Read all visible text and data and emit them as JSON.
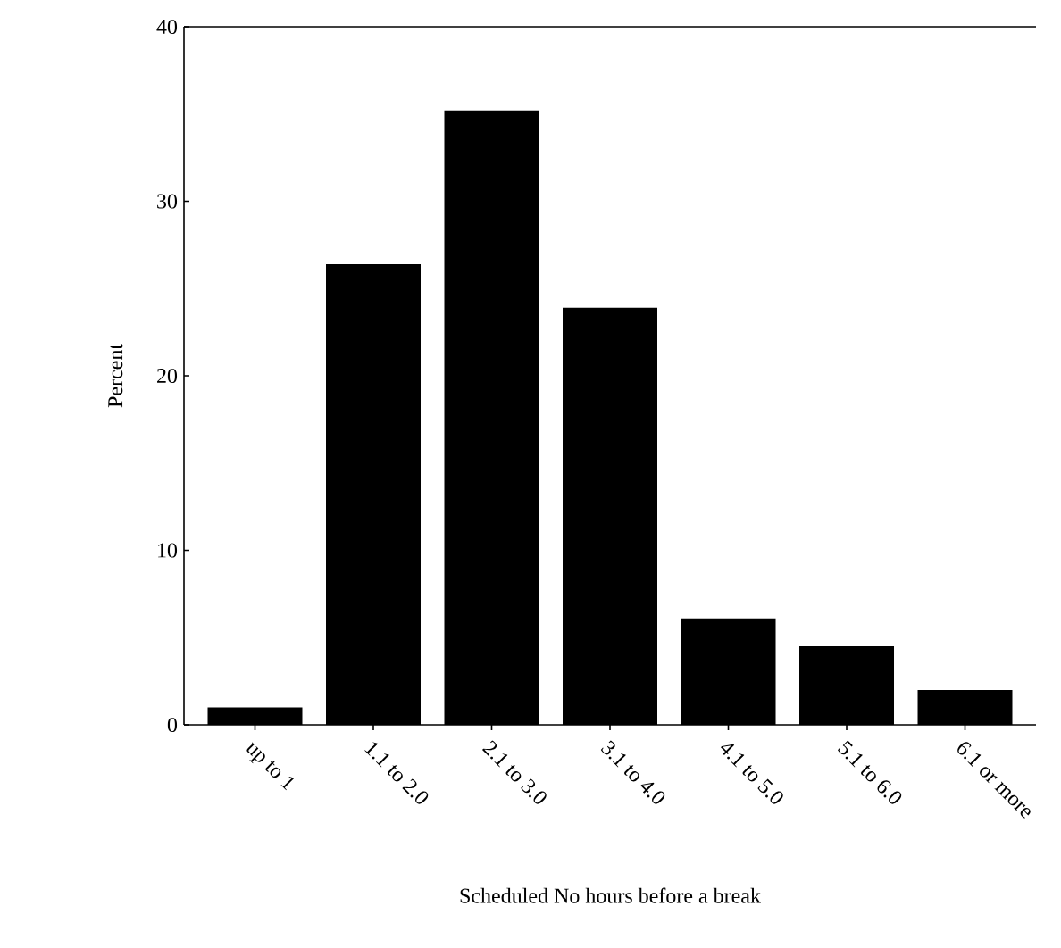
{
  "chart_data": {
    "type": "bar",
    "xlabel": "Scheduled No hours before a break",
    "ylabel": "Percent",
    "categories": [
      "up to 1",
      "1.1 to 2.0",
      "2.1 to 3.0",
      "3.1 to 4.0",
      "4.1 to 5.0",
      "5.1 to 6.0",
      "6.1 or more"
    ],
    "values": [
      1.0,
      26.4,
      35.2,
      23.9,
      6.1,
      4.5,
      2.0
    ],
    "color": "#000000",
    "ylim": [
      0,
      40
    ],
    "yticks": [
      0,
      10,
      20,
      30,
      40
    ]
  }
}
